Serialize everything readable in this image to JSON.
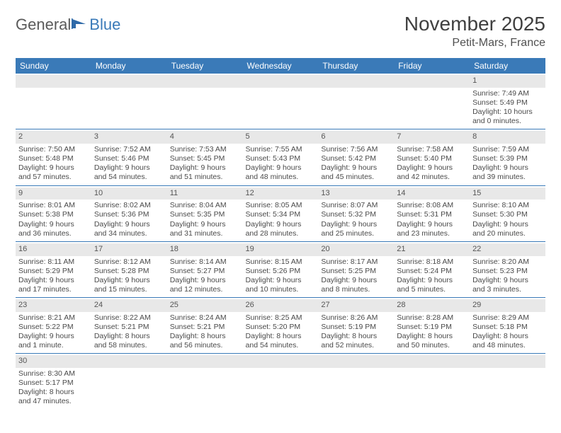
{
  "logo": {
    "part1": "General",
    "part2": "Blue"
  },
  "title": "November 2025",
  "location": "Petit-Mars, France",
  "colors": {
    "header_bg": "#3a7ab8",
    "header_text": "#ffffff",
    "daynum_bg": "#e8e8e8",
    "rule": "#3a7ab8",
    "body_text": "#4a4a4a",
    "title_text": "#404040"
  },
  "weekdays": [
    "Sunday",
    "Monday",
    "Tuesday",
    "Wednesday",
    "Thursday",
    "Friday",
    "Saturday"
  ],
  "weeks": [
    [
      null,
      null,
      null,
      null,
      null,
      null,
      {
        "n": "1",
        "sr": "Sunrise: 7:49 AM",
        "ss": "Sunset: 5:49 PM",
        "d1": "Daylight: 10 hours",
        "d2": "and 0 minutes."
      }
    ],
    [
      {
        "n": "2",
        "sr": "Sunrise: 7:50 AM",
        "ss": "Sunset: 5:48 PM",
        "d1": "Daylight: 9 hours",
        "d2": "and 57 minutes."
      },
      {
        "n": "3",
        "sr": "Sunrise: 7:52 AM",
        "ss": "Sunset: 5:46 PM",
        "d1": "Daylight: 9 hours",
        "d2": "and 54 minutes."
      },
      {
        "n": "4",
        "sr": "Sunrise: 7:53 AM",
        "ss": "Sunset: 5:45 PM",
        "d1": "Daylight: 9 hours",
        "d2": "and 51 minutes."
      },
      {
        "n": "5",
        "sr": "Sunrise: 7:55 AM",
        "ss": "Sunset: 5:43 PM",
        "d1": "Daylight: 9 hours",
        "d2": "and 48 minutes."
      },
      {
        "n": "6",
        "sr": "Sunrise: 7:56 AM",
        "ss": "Sunset: 5:42 PM",
        "d1": "Daylight: 9 hours",
        "d2": "and 45 minutes."
      },
      {
        "n": "7",
        "sr": "Sunrise: 7:58 AM",
        "ss": "Sunset: 5:40 PM",
        "d1": "Daylight: 9 hours",
        "d2": "and 42 minutes."
      },
      {
        "n": "8",
        "sr": "Sunrise: 7:59 AM",
        "ss": "Sunset: 5:39 PM",
        "d1": "Daylight: 9 hours",
        "d2": "and 39 minutes."
      }
    ],
    [
      {
        "n": "9",
        "sr": "Sunrise: 8:01 AM",
        "ss": "Sunset: 5:38 PM",
        "d1": "Daylight: 9 hours",
        "d2": "and 36 minutes."
      },
      {
        "n": "10",
        "sr": "Sunrise: 8:02 AM",
        "ss": "Sunset: 5:36 PM",
        "d1": "Daylight: 9 hours",
        "d2": "and 34 minutes."
      },
      {
        "n": "11",
        "sr": "Sunrise: 8:04 AM",
        "ss": "Sunset: 5:35 PM",
        "d1": "Daylight: 9 hours",
        "d2": "and 31 minutes."
      },
      {
        "n": "12",
        "sr": "Sunrise: 8:05 AM",
        "ss": "Sunset: 5:34 PM",
        "d1": "Daylight: 9 hours",
        "d2": "and 28 minutes."
      },
      {
        "n": "13",
        "sr": "Sunrise: 8:07 AM",
        "ss": "Sunset: 5:32 PM",
        "d1": "Daylight: 9 hours",
        "d2": "and 25 minutes."
      },
      {
        "n": "14",
        "sr": "Sunrise: 8:08 AM",
        "ss": "Sunset: 5:31 PM",
        "d1": "Daylight: 9 hours",
        "d2": "and 23 minutes."
      },
      {
        "n": "15",
        "sr": "Sunrise: 8:10 AM",
        "ss": "Sunset: 5:30 PM",
        "d1": "Daylight: 9 hours",
        "d2": "and 20 minutes."
      }
    ],
    [
      {
        "n": "16",
        "sr": "Sunrise: 8:11 AM",
        "ss": "Sunset: 5:29 PM",
        "d1": "Daylight: 9 hours",
        "d2": "and 17 minutes."
      },
      {
        "n": "17",
        "sr": "Sunrise: 8:12 AM",
        "ss": "Sunset: 5:28 PM",
        "d1": "Daylight: 9 hours",
        "d2": "and 15 minutes."
      },
      {
        "n": "18",
        "sr": "Sunrise: 8:14 AM",
        "ss": "Sunset: 5:27 PM",
        "d1": "Daylight: 9 hours",
        "d2": "and 12 minutes."
      },
      {
        "n": "19",
        "sr": "Sunrise: 8:15 AM",
        "ss": "Sunset: 5:26 PM",
        "d1": "Daylight: 9 hours",
        "d2": "and 10 minutes."
      },
      {
        "n": "20",
        "sr": "Sunrise: 8:17 AM",
        "ss": "Sunset: 5:25 PM",
        "d1": "Daylight: 9 hours",
        "d2": "and 8 minutes."
      },
      {
        "n": "21",
        "sr": "Sunrise: 8:18 AM",
        "ss": "Sunset: 5:24 PM",
        "d1": "Daylight: 9 hours",
        "d2": "and 5 minutes."
      },
      {
        "n": "22",
        "sr": "Sunrise: 8:20 AM",
        "ss": "Sunset: 5:23 PM",
        "d1": "Daylight: 9 hours",
        "d2": "and 3 minutes."
      }
    ],
    [
      {
        "n": "23",
        "sr": "Sunrise: 8:21 AM",
        "ss": "Sunset: 5:22 PM",
        "d1": "Daylight: 9 hours",
        "d2": "and 1 minute."
      },
      {
        "n": "24",
        "sr": "Sunrise: 8:22 AM",
        "ss": "Sunset: 5:21 PM",
        "d1": "Daylight: 8 hours",
        "d2": "and 58 minutes."
      },
      {
        "n": "25",
        "sr": "Sunrise: 8:24 AM",
        "ss": "Sunset: 5:21 PM",
        "d1": "Daylight: 8 hours",
        "d2": "and 56 minutes."
      },
      {
        "n": "26",
        "sr": "Sunrise: 8:25 AM",
        "ss": "Sunset: 5:20 PM",
        "d1": "Daylight: 8 hours",
        "d2": "and 54 minutes."
      },
      {
        "n": "27",
        "sr": "Sunrise: 8:26 AM",
        "ss": "Sunset: 5:19 PM",
        "d1": "Daylight: 8 hours",
        "d2": "and 52 minutes."
      },
      {
        "n": "28",
        "sr": "Sunrise: 8:28 AM",
        "ss": "Sunset: 5:19 PM",
        "d1": "Daylight: 8 hours",
        "d2": "and 50 minutes."
      },
      {
        "n": "29",
        "sr": "Sunrise: 8:29 AM",
        "ss": "Sunset: 5:18 PM",
        "d1": "Daylight: 8 hours",
        "d2": "and 48 minutes."
      }
    ],
    [
      {
        "n": "30",
        "sr": "Sunrise: 8:30 AM",
        "ss": "Sunset: 5:17 PM",
        "d1": "Daylight: 8 hours",
        "d2": "and 47 minutes."
      },
      null,
      null,
      null,
      null,
      null,
      null
    ]
  ]
}
